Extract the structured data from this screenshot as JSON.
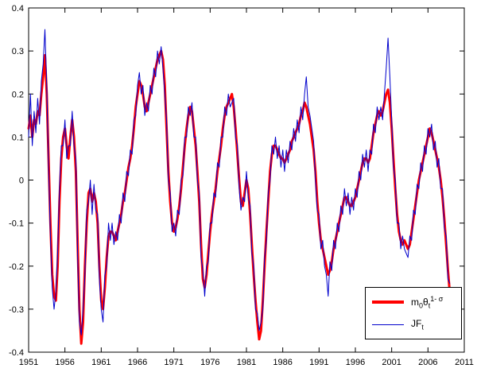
{
  "figure": {
    "background": "#ffffff",
    "axis_color": "#000000"
  },
  "legend": {
    "entry1": {
      "base": "m",
      "sub1": "0",
      "theta": "θ",
      "sub2": "t",
      "sup": "1- σ"
    },
    "entry2": {
      "base": "JF",
      "sub": "t"
    }
  },
  "chart_data": {
    "type": "line",
    "title": "",
    "xlabel": "",
    "ylabel": "",
    "xlim": [
      1951,
      2011
    ],
    "ylim": [
      -0.4,
      0.4
    ],
    "xticks": [
      1951,
      1956,
      1961,
      1966,
      1971,
      1976,
      1981,
      1986,
      1991,
      1996,
      2001,
      2006,
      2011
    ],
    "yticks": [
      -0.4,
      -0.3,
      -0.2,
      -0.1,
      0,
      0.1,
      0.2,
      0.3,
      0.4
    ],
    "grid": false,
    "legend_position": "lower-right",
    "x_start": 1951,
    "x_step": 0.25,
    "series": [
      {
        "name": "m0*theta_t^(1-sigma)",
        "color": "#ff0000",
        "line_width": 3,
        "values": [
          0.12,
          0.15,
          0.1,
          0.14,
          0.13,
          0.16,
          0.15,
          0.2,
          0.24,
          0.29,
          0.2,
          0.05,
          -0.1,
          -0.22,
          -0.27,
          -0.28,
          -0.2,
          -0.05,
          0.05,
          0.1,
          0.12,
          0.08,
          0.05,
          0.1,
          0.14,
          0.1,
          0.02,
          -0.15,
          -0.3,
          -0.38,
          -0.33,
          -0.2,
          -0.1,
          -0.03,
          -0.02,
          -0.05,
          -0.03,
          -0.05,
          -0.1,
          -0.2,
          -0.28,
          -0.3,
          -0.25,
          -0.18,
          -0.13,
          -0.12,
          -0.12,
          -0.13,
          -0.14,
          -0.12,
          -0.1,
          -0.08,
          -0.05,
          -0.03,
          0.0,
          0.03,
          0.05,
          0.08,
          0.12,
          0.17,
          0.2,
          0.23,
          0.22,
          0.2,
          0.17,
          0.16,
          0.18,
          0.2,
          0.22,
          0.24,
          0.26,
          0.28,
          0.29,
          0.3,
          0.28,
          0.22,
          0.12,
          0.02,
          -0.05,
          -0.1,
          -0.12,
          -0.11,
          -0.09,
          -0.06,
          -0.02,
          0.03,
          0.08,
          0.12,
          0.15,
          0.17,
          0.16,
          0.12,
          0.08,
          0.02,
          -0.05,
          -0.15,
          -0.23,
          -0.25,
          -0.22,
          -0.17,
          -0.12,
          -0.08,
          -0.05,
          -0.02,
          0.02,
          0.05,
          0.08,
          0.12,
          0.15,
          0.17,
          0.18,
          0.19,
          0.2,
          0.17,
          0.12,
          0.06,
          0.0,
          -0.05,
          -0.06,
          -0.03,
          0.0,
          -0.02,
          -0.08,
          -0.15,
          -0.22,
          -0.28,
          -0.33,
          -0.37,
          -0.35,
          -0.28,
          -0.2,
          -0.12,
          -0.05,
          0.02,
          0.06,
          0.08,
          0.08,
          0.07,
          0.06,
          0.05,
          0.05,
          0.04,
          0.05,
          0.06,
          0.07,
          0.09,
          0.1,
          0.11,
          0.12,
          0.13,
          0.15,
          0.16,
          0.18,
          0.17,
          0.15,
          0.13,
          0.1,
          0.07,
          0.02,
          -0.05,
          -0.1,
          -0.14,
          -0.16,
          -0.18,
          -0.2,
          -0.22,
          -0.21,
          -0.19,
          -0.16,
          -0.14,
          -0.12,
          -0.1,
          -0.08,
          -0.06,
          -0.04,
          -0.04,
          -0.05,
          -0.06,
          -0.06,
          -0.05,
          -0.04,
          -0.02,
          0.0,
          0.02,
          0.04,
          0.05,
          0.05,
          0.04,
          0.05,
          0.08,
          0.11,
          0.13,
          0.15,
          0.16,
          0.15,
          0.16,
          0.18,
          0.2,
          0.21,
          0.18,
          0.12,
          0.05,
          -0.02,
          -0.08,
          -0.12,
          -0.14,
          -0.15,
          -0.14,
          -0.15,
          -0.16,
          -0.15,
          -0.12,
          -0.09,
          -0.06,
          -0.03,
          0.0,
          0.02,
          0.04,
          0.06,
          0.08,
          0.1,
          0.12,
          0.11,
          0.09,
          0.07,
          0.05,
          0.03,
          0.0,
          -0.04,
          -0.09,
          -0.15,
          -0.21,
          -0.26
        ]
      },
      {
        "name": "JF_t",
        "color": "#0000cc",
        "line_width": 1,
        "values": [
          0.1,
          0.2,
          0.08,
          0.16,
          0.11,
          0.19,
          0.13,
          0.23,
          0.27,
          0.35,
          0.22,
          0.03,
          -0.13,
          -0.25,
          -0.3,
          -0.26,
          -0.17,
          -0.02,
          0.08,
          0.08,
          0.14,
          0.05,
          0.08,
          0.08,
          0.16,
          0.08,
          0.05,
          -0.18,
          -0.33,
          -0.36,
          -0.3,
          -0.22,
          -0.07,
          -0.05,
          0.0,
          -0.08,
          -0.01,
          -0.07,
          -0.08,
          -0.23,
          -0.3,
          -0.33,
          -0.22,
          -0.2,
          -0.1,
          -0.14,
          -0.1,
          -0.15,
          -0.12,
          -0.14,
          -0.08,
          -0.1,
          -0.03,
          -0.05,
          0.02,
          0.01,
          0.07,
          0.06,
          0.14,
          0.15,
          0.22,
          0.25,
          0.2,
          0.22,
          0.15,
          0.18,
          0.16,
          0.22,
          0.2,
          0.26,
          0.24,
          0.3,
          0.27,
          0.31,
          0.26,
          0.2,
          0.14,
          0.0,
          -0.03,
          -0.12,
          -0.1,
          -0.13,
          -0.07,
          -0.08,
          0.0,
          0.01,
          0.1,
          0.1,
          0.17,
          0.15,
          0.18,
          0.1,
          0.1,
          0.0,
          -0.03,
          -0.18,
          -0.21,
          -0.27,
          -0.2,
          -0.19,
          -0.1,
          -0.1,
          -0.03,
          -0.04,
          0.04,
          0.03,
          0.1,
          0.1,
          0.17,
          0.15,
          0.2,
          0.17,
          0.18,
          0.19,
          0.1,
          0.08,
          -0.02,
          -0.07,
          -0.04,
          -0.05,
          0.02,
          -0.04,
          -0.06,
          -0.17,
          -0.2,
          -0.3,
          -0.31,
          -0.35,
          -0.33,
          -0.3,
          -0.18,
          -0.14,
          -0.03,
          0.0,
          0.08,
          0.06,
          0.1,
          0.05,
          0.08,
          0.03,
          0.07,
          0.02,
          0.07,
          0.04,
          0.09,
          0.07,
          0.12,
          0.09,
          0.14,
          0.11,
          0.17,
          0.14,
          0.2,
          0.24,
          0.17,
          0.15,
          0.12,
          0.09,
          0.0,
          -0.07,
          -0.08,
          -0.16,
          -0.14,
          -0.2,
          -0.22,
          -0.27,
          -0.19,
          -0.21,
          -0.14,
          -0.16,
          -0.1,
          -0.12,
          -0.06,
          -0.08,
          -0.02,
          -0.06,
          -0.03,
          -0.08,
          -0.04,
          -0.07,
          -0.02,
          -0.04,
          0.02,
          0.0,
          0.06,
          0.03,
          0.07,
          0.02,
          0.07,
          0.06,
          0.13,
          0.11,
          0.17,
          0.14,
          0.17,
          0.14,
          0.2,
          0.26,
          0.33,
          0.24,
          0.14,
          0.03,
          0.0,
          -0.1,
          -0.1,
          -0.16,
          -0.13,
          -0.16,
          -0.17,
          -0.18,
          -0.13,
          -0.14,
          -0.07,
          -0.08,
          -0.01,
          -0.02,
          0.04,
          0.02,
          0.08,
          0.06,
          0.12,
          0.1,
          0.13,
          0.07,
          0.09,
          0.03,
          0.05,
          -0.02,
          -0.02,
          -0.11,
          -0.13,
          -0.23,
          -0.24
        ]
      }
    ]
  }
}
